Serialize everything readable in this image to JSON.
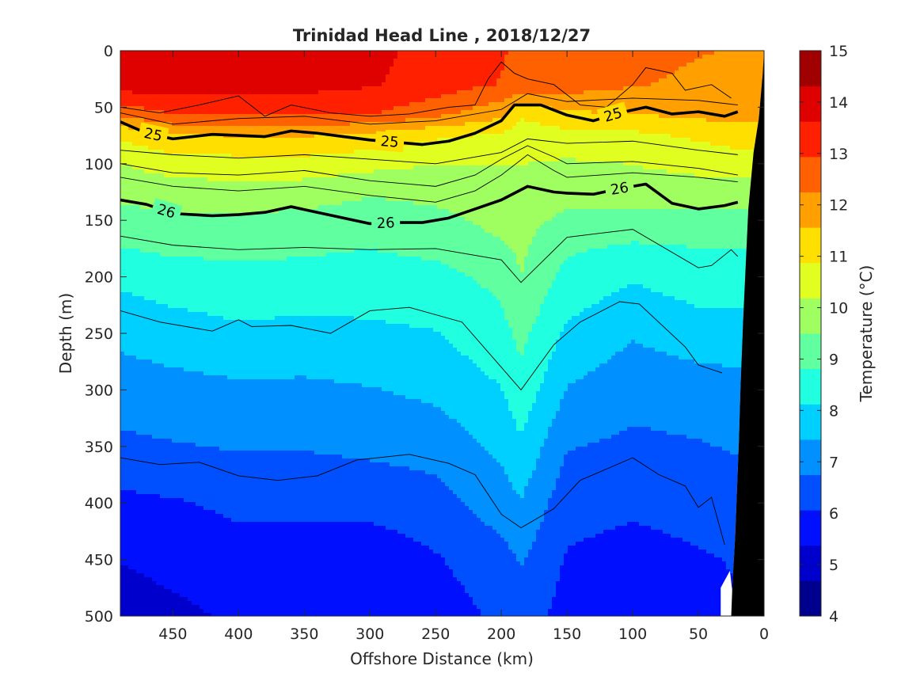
{
  "chart_data": {
    "type": "heatmap",
    "title": "Trinidad Head Line , 2018/12/27",
    "xlabel": "Offshore Distance (km)",
    "ylabel": "Depth (m)",
    "xlim": [
      490,
      0
    ],
    "ylim": [
      0,
      500
    ],
    "x_reversed": true,
    "y_reversed": true,
    "xticks": [
      "450",
      "400",
      "350",
      "300",
      "250",
      "200",
      "150",
      "100",
      "50",
      "0"
    ],
    "xtick_values": [
      450,
      400,
      350,
      300,
      250,
      200,
      150,
      100,
      50,
      0
    ],
    "yticks": [
      "0",
      "50",
      "100",
      "150",
      "200",
      "250",
      "300",
      "350",
      "400",
      "450",
      "500"
    ],
    "ytick_values": [
      0,
      50,
      100,
      150,
      200,
      250,
      300,
      350,
      400,
      450,
      500
    ],
    "colorbar": {
      "label": "Temperature (°C)",
      "ticks": [
        "4",
        "5",
        "6",
        "7",
        "8",
        "9",
        "10",
        "11",
        "12",
        "13",
        "14",
        "15"
      ],
      "range": [
        4,
        15
      ],
      "colors": [
        "#00008f",
        "#0000cc",
        "#0010ff",
        "#0050ff",
        "#0090ff",
        "#00d0ff",
        "#20ffdf",
        "#60ff9f",
        "#a0ff60",
        "#e0ff20",
        "#ffdf00",
        "#ffa000",
        "#ff6000",
        "#ff2000",
        "#df0000",
        "#a00000"
      ]
    },
    "temperature_field": {
      "x": [
        490,
        450,
        400,
        350,
        300,
        250,
        200,
        185,
        150,
        100,
        50,
        22
      ],
      "depth": [
        0,
        30,
        55,
        75,
        100,
        130,
        160,
        200,
        250,
        300,
        350,
        400,
        450,
        500
      ],
      "values": [
        [
          14.2,
          14.2,
          14.0,
          14.0,
          13.8,
          13.4,
          13.0,
          12.8,
          12.8,
          12.5,
          12.3,
          12.2
        ],
        [
          14.0,
          14.0,
          14.0,
          13.9,
          13.7,
          13.3,
          12.9,
          12.8,
          12.6,
          12.3,
          12.1,
          12.0
        ],
        [
          12.5,
          13.0,
          13.0,
          13.0,
          13.0,
          12.5,
          11.8,
          11.0,
          11.5,
          11.6,
          11.8,
          11.8
        ],
        [
          11.0,
          11.5,
          11.6,
          11.6,
          11.4,
          11.0,
          10.8,
          10.5,
          10.6,
          10.7,
          11.0,
          11.2
        ],
        [
          10.2,
          10.5,
          10.6,
          10.6,
          10.4,
          10.2,
          10.2,
          10.2,
          10.1,
          10.2,
          10.4,
          10.5
        ],
        [
          9.6,
          9.7,
          9.8,
          9.7,
          9.5,
          9.6,
          9.8,
          10.0,
          9.7,
          9.8,
          9.8,
          9.7
        ],
        [
          9.1,
          9.2,
          9.2,
          9.1,
          9.0,
          9.2,
          9.6,
          9.7,
          9.1,
          9.0,
          9.0,
          9.0
        ],
        [
          8.3,
          8.5,
          8.6,
          8.6,
          8.5,
          8.6,
          9.0,
          9.5,
          8.6,
          8.2,
          8.5,
          8.5
        ],
        [
          7.6,
          7.8,
          8.0,
          7.9,
          8.0,
          8.1,
          8.6,
          9.0,
          8.0,
          7.5,
          7.8,
          7.8
        ],
        [
          7.1,
          7.2,
          7.3,
          7.3,
          7.4,
          7.6,
          8.1,
          8.6,
          7.4,
          7.0,
          7.1,
          7.2
        ],
        [
          6.6,
          6.7,
          6.8,
          6.8,
          6.9,
          7.0,
          7.6,
          8.0,
          6.8,
          6.6,
          6.7,
          6.8
        ],
        [
          5.9,
          6.0,
          6.2,
          6.2,
          6.3,
          6.5,
          7.1,
          7.4,
          6.3,
          6.2,
          6.3,
          6.5
        ],
        [
          5.4,
          5.6,
          5.8,
          5.8,
          5.6,
          6.0,
          6.5,
          6.8,
          6.0,
          5.8,
          6.0,
          6.1
        ],
        [
          5.0,
          5.2,
          5.5,
          5.6,
          5.4,
          5.7,
          6.2,
          6.4,
          5.8,
          5.6,
          5.8,
          6.0
        ]
      ]
    },
    "density_contours": [
      {
        "label": "25",
        "label_positions_km": [
          465,
          285,
          115
        ],
        "x": [
          490,
          470,
          450,
          420,
          400,
          380,
          360,
          340,
          320,
          300,
          280,
          260,
          240,
          220,
          200,
          190,
          170,
          150,
          130,
          110,
          90,
          70,
          50,
          30,
          20
        ],
        "depth": [
          63,
          73,
          78,
          74,
          75,
          76,
          71,
          73,
          76,
          79,
          81,
          83,
          80,
          73,
          62,
          48,
          48,
          57,
          62,
          55,
          50,
          56,
          54,
          58,
          54
        ]
      },
      {
        "label": "26",
        "label_positions_km": [
          455,
          288,
          110
        ],
        "x": [
          490,
          470,
          450,
          420,
          400,
          380,
          360,
          340,
          320,
          300,
          280,
          260,
          240,
          220,
          200,
          180,
          160,
          150,
          130,
          110,
          90,
          70,
          50,
          30,
          20
        ],
        "depth": [
          132,
          136,
          144,
          146,
          145,
          143,
          138,
          143,
          148,
          153,
          152,
          152,
          148,
          140,
          132,
          120,
          125,
          126,
          127,
          122,
          118,
          135,
          140,
          137,
          134
        ]
      }
    ],
    "thin_contours": [
      {
        "x": [
          490,
          460,
          430,
          400,
          380,
          360,
          330,
          300,
          270,
          240,
          220,
          210,
          200,
          190,
          180,
          160,
          140,
          120,
          100,
          90,
          70,
          60,
          40,
          25
        ],
        "depth": [
          50,
          55,
          48,
          40,
          58,
          48,
          55,
          58,
          56,
          50,
          48,
          25,
          10,
          20,
          25,
          30,
          48,
          50,
          30,
          15,
          20,
          35,
          30,
          42
        ]
      },
      {
        "x": [
          490,
          450,
          400,
          350,
          300,
          250,
          200,
          180,
          150,
          100,
          50,
          20
        ],
        "depth": [
          55,
          65,
          60,
          58,
          65,
          62,
          52,
          38,
          45,
          42,
          44,
          48
        ]
      },
      {
        "x": [
          490,
          450,
          400,
          350,
          300,
          250,
          200,
          180,
          150,
          100,
          50,
          20
        ],
        "depth": [
          88,
          92,
          95,
          92,
          96,
          100,
          90,
          78,
          82,
          80,
          88,
          92
        ]
      },
      {
        "x": [
          490,
          450,
          400,
          350,
          300,
          250,
          220,
          200,
          180,
          160,
          150,
          100,
          50,
          20
        ],
        "depth": [
          100,
          108,
          110,
          106,
          115,
          120,
          110,
          96,
          84,
          94,
          100,
          98,
          104,
          110
        ]
      },
      {
        "x": [
          490,
          450,
          400,
          350,
          300,
          250,
          220,
          200,
          180,
          160,
          150,
          100,
          50,
          20
        ],
        "depth": [
          112,
          120,
          124,
          120,
          128,
          134,
          124,
          110,
          92,
          106,
          112,
          108,
          112,
          116
        ]
      },
      {
        "x": [
          490,
          450,
          400,
          350,
          300,
          250,
          200,
          185,
          150,
          100,
          50,
          40,
          25,
          20
        ],
        "depth": [
          164,
          172,
          176,
          174,
          176,
          175,
          185,
          205,
          165,
          158,
          192,
          190,
          176,
          182
        ]
      },
      {
        "x": [
          490,
          460,
          420,
          400,
          390,
          360,
          330,
          300,
          270,
          230,
          200,
          185,
          160,
          140,
          110,
          95,
          60,
          50,
          32
        ],
        "depth": [
          230,
          240,
          248,
          238,
          244,
          243,
          250,
          230,
          227,
          240,
          280,
          300,
          260,
          240,
          222,
          224,
          262,
          278,
          285
        ]
      },
      {
        "x": [
          490,
          460,
          430,
          400,
          370,
          340,
          310,
          270,
          240,
          220,
          200,
          185,
          160,
          140,
          120,
          100,
          80,
          60,
          50,
          40,
          30
        ],
        "depth": [
          360,
          366,
          364,
          376,
          380,
          376,
          362,
          357,
          365,
          375,
          410,
          422,
          405,
          380,
          370,
          360,
          375,
          385,
          404,
          395,
          437
        ]
      }
    ],
    "bathymetry": {
      "description": "seafloor at the shelf",
      "x": [
        25,
        24,
        22,
        21,
        19,
        18,
        16,
        14,
        12,
        8,
        4,
        1,
        0
      ],
      "depth": [
        500,
        470,
        430,
        400,
        340,
        300,
        240,
        190,
        140,
        90,
        60,
        20,
        0
      ]
    },
    "grid": false
  }
}
